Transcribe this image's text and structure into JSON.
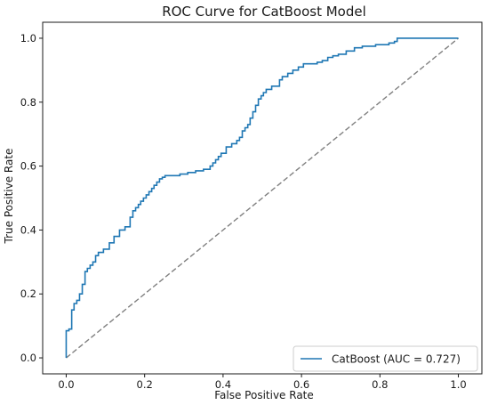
{
  "chart_data": {
    "type": "line",
    "title": "ROC Curve for CatBoost Model",
    "xlabel": "False Positive Rate",
    "ylabel": "True Positive Rate",
    "xlim": [
      -0.06,
      1.06
    ],
    "ylim": [
      -0.05,
      1.05
    ],
    "x_ticks": [
      "0.0",
      "0.2",
      "0.4",
      "0.6",
      "0.8",
      "1.0"
    ],
    "y_ticks": [
      "0.0",
      "0.2",
      "0.4",
      "0.6",
      "0.8",
      "1.0"
    ],
    "grid": false,
    "legend_position": "lower-right",
    "series": [
      {
        "name": "CatBoost (AUC = 0.727)",
        "color": "#1f77b4",
        "style": "solid",
        "x": [
          0,
          0,
          0.007,
          0.007,
          0.014,
          0.014,
          0.02,
          0.02,
          0.027,
          0.027,
          0.034,
          0.034,
          0.041,
          0.041,
          0.048,
          0.048,
          0.054,
          0.054,
          0.061,
          0.061,
          0.068,
          0.068,
          0.075,
          0.075,
          0.082,
          0.082,
          0.095,
          0.095,
          0.11,
          0.11,
          0.122,
          0.122,
          0.136,
          0.136,
          0.15,
          0.15,
          0.163,
          0.163,
          0.17,
          0.17,
          0.177,
          0.177,
          0.184,
          0.184,
          0.19,
          0.19,
          0.197,
          0.197,
          0.204,
          0.204,
          0.211,
          0.211,
          0.218,
          0.218,
          0.224,
          0.224,
          0.231,
          0.231,
          0.238,
          0.238,
          0.245,
          0.245,
          0.252,
          0.252,
          0.29,
          0.29,
          0.31,
          0.31,
          0.33,
          0.33,
          0.35,
          0.35,
          0.367,
          0.367,
          0.374,
          0.374,
          0.381,
          0.381,
          0.388,
          0.388,
          0.395,
          0.395,
          0.408,
          0.408,
          0.422,
          0.422,
          0.435,
          0.435,
          0.442,
          0.442,
          0.449,
          0.449,
          0.456,
          0.456,
          0.463,
          0.463,
          0.469,
          0.469,
          0.476,
          0.476,
          0.483,
          0.483,
          0.49,
          0.49,
          0.497,
          0.497,
          0.503,
          0.503,
          0.51,
          0.51,
          0.524,
          0.524,
          0.544,
          0.544,
          0.551,
          0.551,
          0.565,
          0.565,
          0.578,
          0.578,
          0.592,
          0.592,
          0.605,
          0.605,
          0.64,
          0.64,
          0.653,
          0.653,
          0.667,
          0.667,
          0.68,
          0.68,
          0.694,
          0.694,
          0.714,
          0.714,
          0.735,
          0.735,
          0.755,
          0.755,
          0.789,
          0.789,
          0.823,
          0.823,
          0.837,
          0.837,
          0.844,
          0.844,
          1.0
        ],
        "y": [
          0,
          0.085,
          0.085,
          0.09,
          0.09,
          0.15,
          0.15,
          0.17,
          0.17,
          0.18,
          0.18,
          0.2,
          0.2,
          0.23,
          0.23,
          0.27,
          0.27,
          0.28,
          0.28,
          0.29,
          0.29,
          0.3,
          0.3,
          0.32,
          0.32,
          0.33,
          0.33,
          0.34,
          0.34,
          0.36,
          0.36,
          0.38,
          0.38,
          0.4,
          0.4,
          0.41,
          0.41,
          0.44,
          0.44,
          0.46,
          0.46,
          0.47,
          0.47,
          0.48,
          0.48,
          0.49,
          0.49,
          0.5,
          0.5,
          0.51,
          0.51,
          0.52,
          0.52,
          0.53,
          0.53,
          0.54,
          0.54,
          0.55,
          0.55,
          0.56,
          0.56,
          0.565,
          0.565,
          0.57,
          0.57,
          0.575,
          0.575,
          0.58,
          0.58,
          0.585,
          0.585,
          0.59,
          0.59,
          0.6,
          0.6,
          0.61,
          0.61,
          0.62,
          0.62,
          0.63,
          0.63,
          0.64,
          0.64,
          0.66,
          0.66,
          0.67,
          0.67,
          0.68,
          0.68,
          0.69,
          0.69,
          0.71,
          0.71,
          0.72,
          0.72,
          0.73,
          0.73,
          0.75,
          0.75,
          0.77,
          0.77,
          0.79,
          0.79,
          0.81,
          0.81,
          0.82,
          0.82,
          0.83,
          0.83,
          0.84,
          0.84,
          0.85,
          0.85,
          0.87,
          0.87,
          0.88,
          0.88,
          0.89,
          0.89,
          0.9,
          0.9,
          0.91,
          0.91,
          0.92,
          0.92,
          0.925,
          0.925,
          0.93,
          0.93,
          0.94,
          0.94,
          0.945,
          0.945,
          0.95,
          0.95,
          0.96,
          0.96,
          0.97,
          0.97,
          0.975,
          0.975,
          0.98,
          0.98,
          0.985,
          0.985,
          0.99,
          0.99,
          1.0,
          1.0
        ]
      },
      {
        "name": "",
        "color": "#808080",
        "style": "dashed",
        "x": [
          0,
          1
        ],
        "y": [
          0,
          1
        ]
      }
    ]
  }
}
